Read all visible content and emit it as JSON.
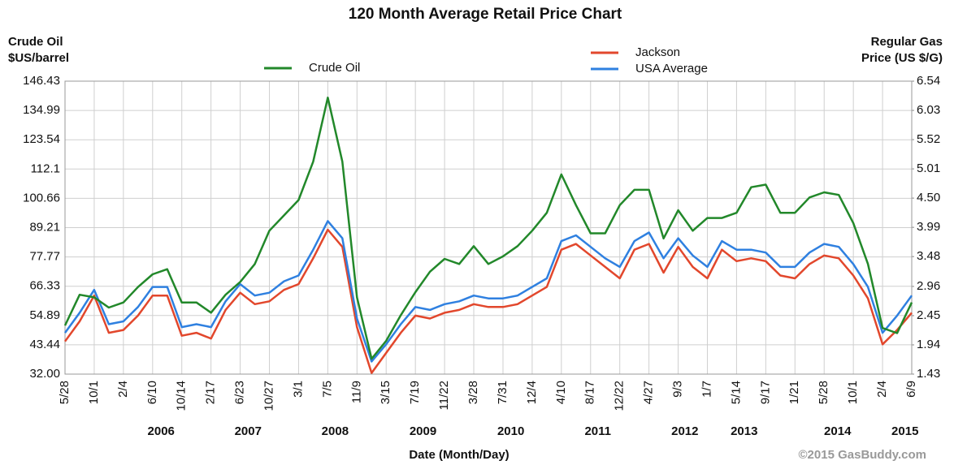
{
  "chart_data": {
    "type": "line",
    "title": "120 Month Average Retail Price Chart",
    "y_label": [
      "Crude Oil",
      "$US/barrel"
    ],
    "y2_label": [
      "Regular Gas",
      "Price (US $/G)"
    ],
    "x_label": "Date (Month/Day)",
    "credit": "©2015 GasBuddy.com",
    "categories": [
      "5/28",
      null,
      "10/1",
      null,
      "2/4",
      null,
      "6/10",
      null,
      "10/14",
      null,
      "2/17",
      null,
      "6/23",
      null,
      "10/27",
      null,
      "3/1",
      null,
      "7/5",
      null,
      "11/9",
      null,
      "3/15",
      null,
      "7/19",
      null,
      "11/22",
      null,
      "3/28",
      null,
      "7/31",
      null,
      "12/4",
      null,
      "4/10",
      null,
      "8/17",
      null,
      "12/22",
      null,
      "4/27",
      null,
      "9/3",
      null,
      "1/7",
      null,
      "5/14",
      null,
      "9/17",
      null,
      "1/21",
      null,
      "5/28",
      null,
      "10/1",
      null,
      "2/4",
      null,
      "6/9"
    ],
    "years": [
      "2006",
      "2007",
      "2008",
      "2009",
      "2010",
      "2011",
      "2012",
      "2013",
      "2014",
      "2015"
    ],
    "ylim": [
      32,
      146.43
    ],
    "yticks": [
      {
        "value": 32,
        "label": "32.00"
      },
      43.44,
      54.89,
      66.33,
      77.77,
      89.21,
      100.66,
      112.1,
      123.54,
      134.99,
      146.43
    ],
    "y2lim": [
      1.43,
      6.54
    ],
    "y2ticks": [
      1.43,
      1.94,
      2.45,
      2.96,
      3.48,
      3.99,
      {
        "value": 4.5,
        "label": "4.50"
      },
      5.01,
      5.52,
      6.03,
      6.54
    ],
    "grid": true,
    "series": [
      {
        "name": "Crude Oil",
        "color": "#22882a",
        "values": [
          51,
          63,
          62,
          58,
          60,
          66,
          71,
          73,
          60,
          60,
          56,
          63,
          68,
          75,
          88,
          94,
          100,
          115,
          140,
          115,
          62,
          38,
          45,
          55,
          64,
          72,
          77,
          75,
          82,
          75,
          78,
          82,
          88,
          95,
          110,
          98,
          87,
          87,
          98,
          104,
          104,
          85,
          96,
          88,
          93,
          93,
          95,
          105,
          106,
          95,
          95,
          101,
          103,
          102,
          91,
          75,
          50,
          48,
          60
        ]
      },
      {
        "name": "Jackson",
        "color": "#e2472c",
        "axis": "y2",
        "values": [
          2.0,
          2.35,
          2.8,
          2.15,
          2.2,
          2.45,
          2.8,
          2.8,
          2.1,
          2.15,
          2.05,
          2.55,
          2.85,
          2.65,
          2.7,
          2.9,
          3.0,
          3.45,
          3.95,
          3.65,
          2.25,
          1.45,
          1.8,
          2.15,
          2.45,
          2.4,
          2.5,
          2.55,
          2.65,
          2.6,
          2.6,
          2.65,
          2.8,
          2.95,
          3.6,
          3.7,
          3.5,
          3.3,
          3.1,
          3.6,
          3.7,
          3.2,
          3.65,
          3.3,
          3.1,
          3.6,
          3.4,
          3.45,
          3.4,
          3.15,
          3.1,
          3.35,
          3.5,
          3.45,
          3.15,
          2.75,
          1.95,
          2.2,
          2.5
        ]
      },
      {
        "name": "USA Average",
        "color": "#2f80e0",
        "axis": "y2",
        "values": [
          2.15,
          2.5,
          2.9,
          2.3,
          2.35,
          2.6,
          2.95,
          2.95,
          2.25,
          2.3,
          2.25,
          2.7,
          3.0,
          2.8,
          2.85,
          3.05,
          3.15,
          3.6,
          4.1,
          3.8,
          2.4,
          1.65,
          1.95,
          2.3,
          2.6,
          2.55,
          2.65,
          2.7,
          2.8,
          2.75,
          2.75,
          2.8,
          2.95,
          3.1,
          3.75,
          3.85,
          3.65,
          3.45,
          3.3,
          3.75,
          3.9,
          3.45,
          3.8,
          3.5,
          3.3,
          3.75,
          3.6,
          3.6,
          3.55,
          3.3,
          3.3,
          3.55,
          3.7,
          3.65,
          3.35,
          2.95,
          2.15,
          2.45,
          2.8
        ]
      }
    ]
  }
}
